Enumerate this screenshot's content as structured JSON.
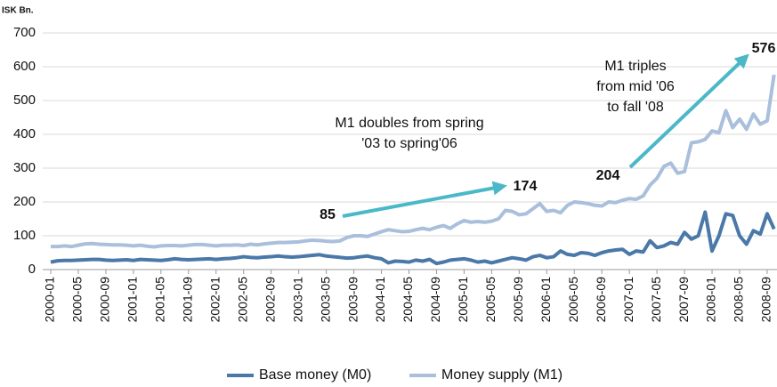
{
  "chart_data": {
    "type": "line",
    "y_axis_label": "ISK Bn.",
    "categories": [
      "2000-01",
      null,
      null,
      null,
      "2000-05",
      null,
      null,
      null,
      "2000-09",
      null,
      null,
      null,
      "2001-01",
      null,
      null,
      null,
      "2001-05",
      null,
      null,
      null,
      "2001-09",
      null,
      null,
      null,
      "2002-01",
      null,
      null,
      null,
      "2002-05",
      null,
      null,
      null,
      "2002-09",
      null,
      null,
      null,
      "2003-01",
      null,
      null,
      null,
      "2003-05",
      null,
      null,
      null,
      "2003-09",
      null,
      null,
      null,
      "2004-01",
      null,
      null,
      null,
      "2004-05",
      null,
      null,
      null,
      "2004-09",
      null,
      null,
      null,
      "2005-01",
      null,
      null,
      null,
      "2005-05",
      null,
      null,
      null,
      "2005-09",
      null,
      null,
      null,
      "2006-01",
      null,
      null,
      null,
      "2006-05",
      null,
      null,
      null,
      "2006-09",
      null,
      null,
      null,
      "2007-01",
      null,
      null,
      null,
      "2007-05",
      null,
      null,
      null,
      "2007-09",
      null,
      null,
      null,
      "2008-01",
      null,
      null,
      null,
      "2008-05",
      null,
      null,
      null,
      "2008-09",
      null
    ],
    "series": [
      {
        "name": "Base money (M0)",
        "color": "#4a78a8",
        "values": [
          22,
          26,
          27,
          27,
          28,
          29,
          30,
          30,
          28,
          27,
          28,
          29,
          27,
          30,
          29,
          28,
          27,
          29,
          32,
          30,
          29,
          30,
          31,
          32,
          30,
          32,
          33,
          35,
          38,
          36,
          35,
          37,
          38,
          40,
          38,
          37,
          38,
          40,
          42,
          44,
          40,
          38,
          36,
          34,
          35,
          38,
          40,
          35,
          32,
          20,
          25,
          24,
          22,
          28,
          25,
          30,
          18,
          22,
          28,
          30,
          32,
          28,
          22,
          25,
          20,
          25,
          30,
          35,
          32,
          28,
          38,
          42,
          35,
          38,
          55,
          45,
          42,
          50,
          48,
          42,
          50,
          55,
          58,
          60,
          45,
          55,
          52,
          85,
          65,
          70,
          80,
          75,
          110,
          90,
          100,
          170,
          55,
          100,
          165,
          160,
          100,
          75,
          115,
          105,
          165,
          120
        ]
      },
      {
        "name": "Money supply (M1)",
        "color": "#a9bfdc",
        "values": [
          68,
          68,
          70,
          68,
          72,
          76,
          77,
          75,
          74,
          73,
          73,
          72,
          70,
          72,
          69,
          67,
          70,
          71,
          71,
          70,
          72,
          74,
          74,
          72,
          70,
          72,
          72,
          73,
          71,
          75,
          73,
          76,
          78,
          80,
          80,
          81,
          82,
          85,
          87,
          86,
          84,
          83,
          85,
          95,
          100,
          100,
          98,
          105,
          112,
          118,
          115,
          112,
          113,
          118,
          122,
          118,
          125,
          130,
          122,
          135,
          145,
          140,
          142,
          140,
          143,
          150,
          175,
          172,
          162,
          165,
          180,
          195,
          172,
          175,
          168,
          190,
          200,
          198,
          195,
          190,
          188,
          200,
          198,
          205,
          210,
          208,
          218,
          250,
          270,
          305,
          315,
          285,
          290,
          375,
          378,
          385,
          410,
          405,
          470,
          420,
          445,
          415,
          460,
          430,
          440,
          576
        ]
      }
    ],
    "ylim": [
      0,
      700
    ],
    "yticks": [
      0,
      100,
      200,
      300,
      400,
      500,
      600,
      700
    ],
    "grid": true,
    "legend": "bottom",
    "annotation_color": "#4bb8c8",
    "annotations": [
      {
        "text": "M1 doubles from spring"
      },
      {
        "text": "'03 to spring'06"
      },
      {
        "text": "M1 triples"
      },
      {
        "text": "from mid '06"
      },
      {
        "text": "to fall '08"
      },
      {
        "text": "85"
      },
      {
        "text": "174"
      },
      {
        "text": "204"
      },
      {
        "text": "576"
      }
    ]
  }
}
